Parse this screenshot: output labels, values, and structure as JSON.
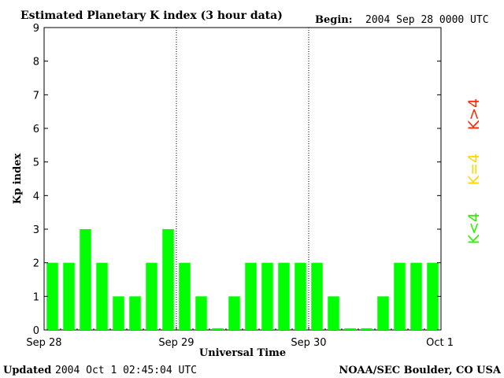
{
  "header": {
    "title": "Estimated Planetary K index (3 hour data)",
    "begin_label": "Begin:",
    "begin_value": "2004 Sep 28 0000 UTC"
  },
  "footer": {
    "updated_label": "Updated",
    "updated_value": "2004 Oct  1 02:45:04 UTC",
    "source": "NOAA/SEC Boulder, CO USA"
  },
  "legend": {
    "high": {
      "text": "K>4",
      "color": "#ff2a00"
    },
    "equal": {
      "text": "K=4",
      "color": "#ffd700"
    },
    "low": {
      "text": "K<4",
      "color": "#33ee00"
    }
  },
  "chart_data": {
    "type": "bar",
    "title": "Estimated Planetary K index (3 hour data)",
    "xlabel": "Universal Time",
    "ylabel": "Kp index",
    "ylim": [
      0,
      9
    ],
    "yticks": [
      "0",
      "1",
      "2",
      "3",
      "4",
      "5",
      "6",
      "7",
      "8",
      "9"
    ],
    "xticks": [
      "Sep 28",
      "Sep 29",
      "Sep 30",
      "Oct 1"
    ],
    "bar_color": "#00ff00",
    "values": [
      2,
      2,
      3,
      2,
      1,
      1,
      2,
      3,
      2,
      1,
      0.05,
      1,
      2,
      2,
      2,
      2,
      2,
      1,
      0.05,
      0.05,
      1,
      2,
      2,
      2
    ]
  }
}
